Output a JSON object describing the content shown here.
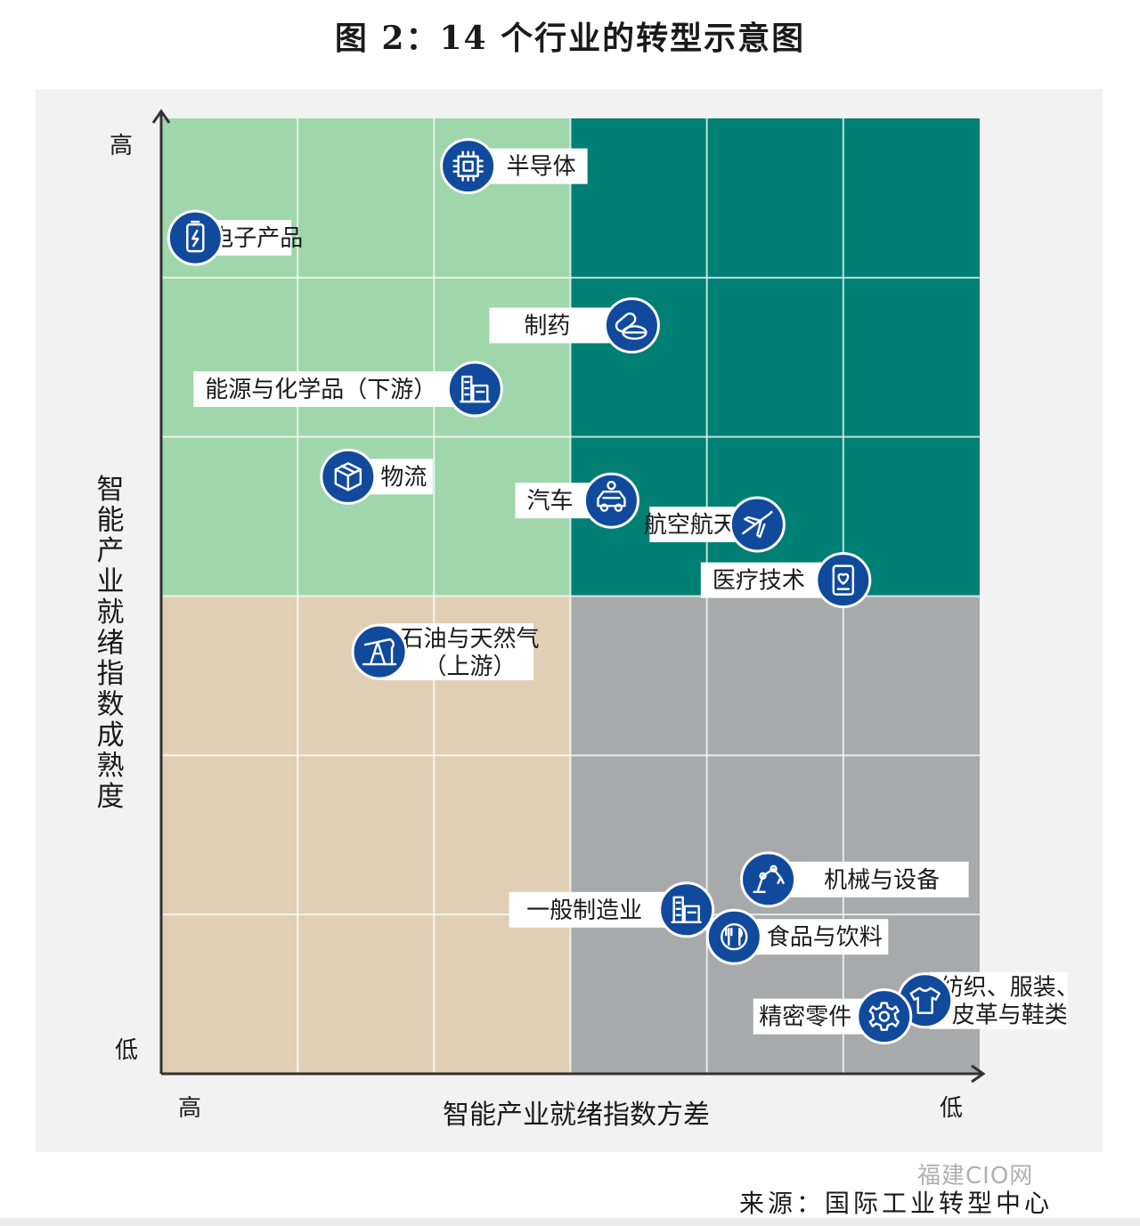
{
  "title": "图 2：14 个行业的转型示意图",
  "source": "来源：国际工业转型中心",
  "watermark": "福建CIO网",
  "colors": {
    "high_high": "#a0d6ab",
    "low_var_high_maturity": "#007f74",
    "high_var_low_maturity": "#e0cfb4",
    "low_low": "#a8a9ab",
    "icon": "#114a9c",
    "label_bg": "#ffffff"
  },
  "chart_data": {
    "type": "scatter",
    "title": "图 2：14 个行业的转型示意图",
    "xlabel": "智能产业就绪指数方差",
    "ylabel": "智能产业就绪指数成熟度",
    "x_direction": "高→低",
    "x_tick_high": "高",
    "x_tick_low": "低",
    "y_tick_high": "高",
    "y_tick_low": "低",
    "xlim": [
      0,
      6
    ],
    "ylim": [
      0,
      6
    ],
    "grid": true,
    "quadrant_split": {
      "x": 3,
      "y": 3
    },
    "points": [
      {
        "name": "半导体",
        "x": 2.25,
        "y": 5.7,
        "icon": "chip-icon",
        "label_side": "right",
        "label_width": 5
      },
      {
        "name": "电子产品",
        "x": 0.25,
        "y": 5.25,
        "icon": "battery-icon",
        "label_side": "right",
        "label_width": 4
      },
      {
        "name": "制药",
        "x": 3.45,
        "y": 4.7,
        "icon": "pill-icon",
        "label_side": "left",
        "label_width": 6
      },
      {
        "name": "能源与化学品（下游）",
        "x": 2.3,
        "y": 4.3,
        "icon": "factory-icon",
        "label_side": "left",
        "label_width": 12
      },
      {
        "name": "物流",
        "x": 1.37,
        "y": 3.75,
        "icon": "box-icon",
        "label_side": "right",
        "label_width": 3.5
      },
      {
        "name": "汽车",
        "x": 3.3,
        "y": 3.6,
        "icon": "car-icon",
        "label_side": "left",
        "label_width": 4
      },
      {
        "name": "航空航天",
        "x": 4.37,
        "y": 3.45,
        "icon": "plane-icon",
        "label_side": "left",
        "label_width": 4.5
      },
      {
        "name": "医疗技术",
        "x": 5.0,
        "y": 3.1,
        "icon": "medical-tablet-icon",
        "label_side": "left",
        "label_width": 6
      },
      {
        "name": "石油与天然气\n（上游）",
        "x": 1.6,
        "y": 2.65,
        "icon": "oil-pump-icon",
        "label_side": "right",
        "label_width": 6.5
      },
      {
        "name": "机械与设备",
        "x": 4.45,
        "y": 1.22,
        "icon": "robot-arm-icon",
        "label_side": "right",
        "label_width": 8.5
      },
      {
        "name": "一般制造业",
        "x": 3.85,
        "y": 1.03,
        "icon": "factory-icon",
        "label_side": "left",
        "label_width": 7.5
      },
      {
        "name": "食品与饮料",
        "x": 4.2,
        "y": 0.86,
        "icon": "utensils-icon",
        "label_side": "right",
        "label_width": 6.5
      },
      {
        "name": "纺织、服装、\n皮革与鞋类",
        "x": 5.6,
        "y": 0.46,
        "icon": "shirt-icon",
        "label_side": "right",
        "label_width": 6
      },
      {
        "name": "精密零件",
        "x": 5.3,
        "y": 0.36,
        "icon": "gear-icon",
        "label_side": "left",
        "label_width": 5.5
      }
    ]
  }
}
